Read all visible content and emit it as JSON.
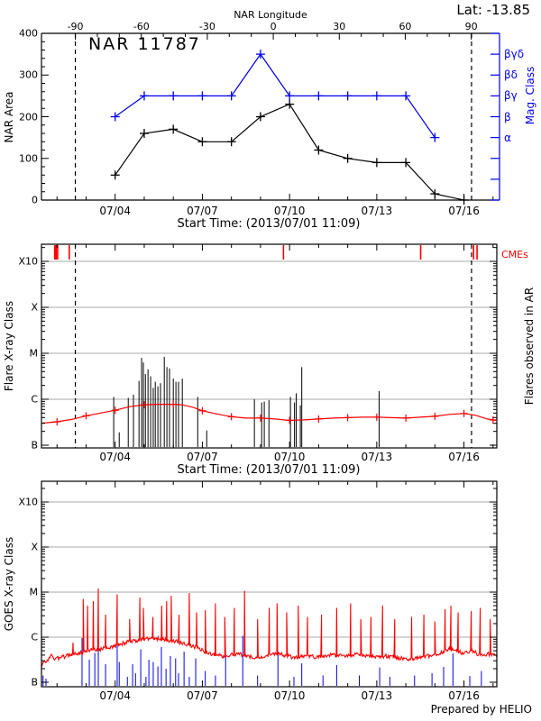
{
  "palette": {
    "red": "#ff0000",
    "blue": "#0000ee",
    "black": "#000000",
    "grid": "#a8a8a8"
  },
  "time": {
    "start_day": 1.465,
    "end_day": 17.13,
    "tick_labels": [
      "07/04",
      "07/07",
      "07/10",
      "07/13",
      "07/16"
    ],
    "tick_days": [
      4,
      7,
      10,
      13,
      16
    ]
  },
  "chart_data": [
    {
      "id": "nar-area-panel",
      "type": "line",
      "title": "NAR 11787",
      "lat_annotation": "Lat: -13.85",
      "xlabel": "Start Time: (2013/07/01 11:09)",
      "ylabel": "NAR Area",
      "ylim": [
        0,
        400
      ],
      "y_tick_labels": [
        "0",
        "100",
        "200",
        "300",
        "400"
      ],
      "y_tick_values": [
        0,
        100,
        200,
        300,
        400
      ],
      "top_axis": {
        "label": "NAR Longitude",
        "tick_labels": [
          "-90",
          "-60",
          "-30",
          "0",
          "30",
          "60",
          "90"
        ],
        "tick_lons": [
          -90,
          -60,
          -30,
          0,
          30,
          60,
          90
        ],
        "day_of_lon0": 9.44,
        "days_per_30deg": 2.27
      },
      "meridian_days": [
        2.63,
        16.26
      ],
      "series": [
        {
          "name": "area",
          "color": "#000000",
          "dates": [
            "07/04",
            "07/05",
            "07/06",
            "07/07",
            "07/08",
            "07/09",
            "07/10",
            "07/11",
            "07/12",
            "07/13",
            "07/14",
            "07/15",
            "07/16"
          ],
          "days": [
            4,
            5,
            6,
            7,
            8,
            9,
            10,
            11,
            12,
            13,
            14,
            15,
            16
          ],
          "values": [
            60,
            160,
            170,
            140,
            140,
            200,
            230,
            120,
            100,
            90,
            90,
            15,
            0
          ]
        },
        {
          "name": "mag_class",
          "color": "#0000ee",
          "dates": [
            "07/04",
            "07/05",
            "07/06",
            "07/07",
            "07/08",
            "07/09",
            "07/10",
            "07/11",
            "07/12",
            "07/13",
            "07/14",
            "07/15"
          ],
          "days": [
            4,
            5,
            6,
            7,
            8,
            9,
            10,
            11,
            12,
            13,
            14,
            15
          ],
          "values": [
            200,
            250,
            250,
            250,
            250,
            350,
            250,
            250,
            250,
            250,
            250,
            150
          ],
          "classes": [
            "β",
            "βγ",
            "βγ",
            "βγ",
            "βγ",
            "βγδ",
            "βγ",
            "βγ",
            "βγ",
            "βγ",
            "βγ",
            "α"
          ]
        }
      ],
      "right_axis": {
        "label": "Mag. Class",
        "class_labels": [
          "βγδ",
          "βδ",
          "βγ",
          "β",
          "α"
        ],
        "class_levels": [
          350,
          300,
          250,
          200,
          150
        ]
      }
    },
    {
      "id": "flare-panel",
      "type": "line+events",
      "ylabel": "Flare X-ray Class",
      "right_label": "Flares observed in AR",
      "cme_label": "CMEs",
      "xlabel": "Start Time: (2013/07/01 11:09)",
      "y_tick_labels": [
        "B",
        "C",
        "M",
        "X",
        "X10"
      ],
      "y_tick_log10": [
        -7,
        -6,
        -5,
        -4,
        -3
      ],
      "meridian_days": [
        2.63,
        16.26
      ],
      "cme_days": [
        1.92,
        1.97,
        2.02,
        2.42,
        9.79,
        14.51,
        16.33,
        16.45
      ],
      "flares_day_log10": [
        [
          3.95,
          -5.95
        ],
        [
          4.14,
          -6.72
        ],
        [
          4.45,
          -5.97
        ],
        [
          4.63,
          -5.9
        ],
        [
          4.82,
          -5.6
        ],
        [
          4.91,
          -5.1
        ],
        [
          4.97,
          -5.2
        ],
        [
          5.04,
          -5.45
        ],
        [
          5.13,
          -5.35
        ],
        [
          5.22,
          -5.5
        ],
        [
          5.31,
          -5.75
        ],
        [
          5.38,
          -5.62
        ],
        [
          5.47,
          -5.72
        ],
        [
          5.56,
          -5.65
        ],
        [
          5.69,
          -5.08
        ],
        [
          5.78,
          -5.3
        ],
        [
          5.87,
          -5.33
        ],
        [
          6.0,
          -5.55
        ],
        [
          6.09,
          -5.62
        ],
        [
          6.18,
          -5.62
        ],
        [
          6.31,
          -5.55
        ],
        [
          6.84,
          -5.95
        ],
        [
          7.15,
          -6.68
        ],
        [
          8.79,
          -6.0
        ],
        [
          9.04,
          -6.07
        ],
        [
          9.13,
          -6.05
        ],
        [
          9.29,
          -6.02
        ],
        [
          10.03,
          -5.95
        ],
        [
          10.17,
          -6.07
        ],
        [
          10.23,
          -5.87
        ],
        [
          10.37,
          -6.13
        ],
        [
          10.42,
          -5.3
        ],
        [
          13.08,
          -5.82
        ]
      ],
      "background_curve_day_log10": [
        [
          1.5,
          -6.52
        ],
        [
          2,
          -6.49
        ],
        [
          2.5,
          -6.44
        ],
        [
          3,
          -6.36
        ],
        [
          3.5,
          -6.3
        ],
        [
          4,
          -6.24
        ],
        [
          4.5,
          -6.16
        ],
        [
          5,
          -6.12
        ],
        [
          5.5,
          -6.11
        ],
        [
          6,
          -6.11
        ],
        [
          6.3,
          -6.12
        ],
        [
          6.7,
          -6.18
        ],
        [
          7,
          -6.25
        ],
        [
          7.5,
          -6.32
        ],
        [
          8,
          -6.38
        ],
        [
          8.5,
          -6.41
        ],
        [
          9,
          -6.41
        ],
        [
          9.5,
          -6.43
        ],
        [
          10,
          -6.46
        ],
        [
          10.5,
          -6.45
        ],
        [
          11,
          -6.43
        ],
        [
          11.5,
          -6.41
        ],
        [
          12,
          -6.4
        ],
        [
          12.5,
          -6.39
        ],
        [
          13,
          -6.39
        ],
        [
          13.5,
          -6.4
        ],
        [
          14,
          -6.41
        ],
        [
          14.5,
          -6.39
        ],
        [
          15,
          -6.37
        ],
        [
          15.5,
          -6.33
        ],
        [
          16,
          -6.31
        ],
        [
          16.4,
          -6.35
        ],
        [
          16.8,
          -6.43
        ],
        [
          17.1,
          -6.46
        ]
      ],
      "background_marker_days": [
        2,
        3,
        4,
        5,
        6,
        7,
        8,
        9,
        10,
        11,
        12,
        13,
        14,
        15,
        16,
        17
      ]
    },
    {
      "id": "goes-panel",
      "type": "line",
      "ylabel": "GOES X-ray Class",
      "credit": "Prepared by HELIO",
      "y_tick_labels": [
        "B",
        "C",
        "M",
        "X",
        "X10"
      ],
      "y_tick_log10": [
        -7,
        -6,
        -5,
        -4,
        -3
      ],
      "red_baseline_day_log10": [
        [
          1.47,
          -6.63
        ],
        [
          1.55,
          -6.55
        ],
        [
          1.65,
          -6.5
        ],
        [
          1.8,
          -6.42
        ],
        [
          1.9,
          -6.47
        ],
        [
          2.0,
          -6.48
        ],
        [
          2.1,
          -6.45
        ],
        [
          2.3,
          -6.42
        ],
        [
          2.5,
          -6.38
        ],
        [
          2.7,
          -6.36
        ],
        [
          2.9,
          -6.33
        ],
        [
          3.1,
          -6.3
        ],
        [
          3.3,
          -6.28
        ],
        [
          3.5,
          -6.26
        ],
        [
          3.7,
          -6.23
        ],
        [
          3.9,
          -6.21
        ],
        [
          4.1,
          -6.18
        ],
        [
          4.3,
          -6.13
        ],
        [
          4.5,
          -6.1
        ],
        [
          4.7,
          -6.08
        ],
        [
          4.9,
          -6.05
        ],
        [
          5.1,
          -6.03
        ],
        [
          5.3,
          -6.02
        ],
        [
          5.5,
          -6.04
        ],
        [
          5.7,
          -6.06
        ],
        [
          5.9,
          -6.08
        ],
        [
          6.1,
          -6.1
        ],
        [
          6.3,
          -6.12
        ],
        [
          6.5,
          -6.16
        ],
        [
          6.7,
          -6.2
        ],
        [
          6.9,
          -6.26
        ],
        [
          7.1,
          -6.32
        ],
        [
          7.3,
          -6.37
        ],
        [
          7.5,
          -6.4
        ],
        [
          7.7,
          -6.42
        ],
        [
          7.9,
          -6.41
        ],
        [
          8.1,
          -6.39
        ],
        [
          8.3,
          -6.38
        ],
        [
          8.5,
          -6.41
        ],
        [
          8.7,
          -6.43
        ],
        [
          8.9,
          -6.44
        ],
        [
          9.1,
          -6.42
        ],
        [
          9.3,
          -6.39
        ],
        [
          9.5,
          -6.36
        ],
        [
          9.7,
          -6.38
        ],
        [
          9.9,
          -6.42
        ],
        [
          10.1,
          -6.44
        ],
        [
          10.3,
          -6.45
        ],
        [
          10.5,
          -6.42
        ],
        [
          10.7,
          -6.41
        ],
        [
          10.9,
          -6.44
        ],
        [
          11.1,
          -6.44
        ],
        [
          11.3,
          -6.42
        ],
        [
          11.5,
          -6.39
        ],
        [
          11.7,
          -6.4
        ],
        [
          11.9,
          -6.42
        ],
        [
          12.1,
          -6.4
        ],
        [
          12.3,
          -6.38
        ],
        [
          12.5,
          -6.41
        ],
        [
          12.7,
          -6.43
        ],
        [
          12.9,
          -6.44
        ],
        [
          13.1,
          -6.44
        ],
        [
          13.3,
          -6.42
        ],
        [
          13.5,
          -6.44
        ],
        [
          13.7,
          -6.46
        ],
        [
          13.9,
          -6.48
        ],
        [
          14.1,
          -6.49
        ],
        [
          14.3,
          -6.47
        ],
        [
          14.5,
          -6.45
        ],
        [
          14.7,
          -6.43
        ],
        [
          14.9,
          -6.41
        ],
        [
          15.1,
          -6.38
        ],
        [
          15.3,
          -6.32
        ],
        [
          15.45,
          -6.26
        ],
        [
          15.6,
          -6.28
        ],
        [
          15.75,
          -6.3
        ],
        [
          15.9,
          -6.34
        ],
        [
          16.1,
          -6.33
        ],
        [
          16.3,
          -6.31
        ],
        [
          16.5,
          -6.38
        ],
        [
          16.7,
          -6.38
        ],
        [
          16.9,
          -6.37
        ],
        [
          17.13,
          -6.42
        ]
      ],
      "red_spikes_day_log10": [
        [
          2.55,
          -6.12
        ],
        [
          2.9,
          -5.15
        ],
        [
          3.05,
          -5.3
        ],
        [
          3.25,
          -5.2
        ],
        [
          3.42,
          -4.92
        ],
        [
          3.67,
          -5.5
        ],
        [
          4.07,
          -5.05
        ],
        [
          4.5,
          -5.6
        ],
        [
          4.85,
          -5.12
        ],
        [
          4.97,
          -5.35
        ],
        [
          5.3,
          -5.55
        ],
        [
          5.6,
          -5.3
        ],
        [
          5.77,
          -5.2
        ],
        [
          5.93,
          -5.08
        ],
        [
          6.2,
          -5.5
        ],
        [
          6.55,
          -5.02
        ],
        [
          6.8,
          -5.45
        ],
        [
          7.1,
          -5.4
        ],
        [
          7.45,
          -5.25
        ],
        [
          7.77,
          -5.55
        ],
        [
          8.1,
          -5.35
        ],
        [
          8.45,
          -4.97
        ],
        [
          8.9,
          -5.6
        ],
        [
          9.3,
          -5.35
        ],
        [
          9.57,
          -5.25
        ],
        [
          9.9,
          -5.45
        ],
        [
          10.3,
          -5.3
        ],
        [
          10.62,
          -5.55
        ],
        [
          11.1,
          -5.5
        ],
        [
          11.62,
          -5.35
        ],
        [
          12.1,
          -5.25
        ],
        [
          12.45,
          -5.6
        ],
        [
          12.8,
          -5.55
        ],
        [
          13.2,
          -5.3
        ],
        [
          13.62,
          -5.6
        ],
        [
          14.2,
          -5.55
        ],
        [
          14.62,
          -5.5
        ],
        [
          15.0,
          -5.65
        ],
        [
          15.35,
          -5.38
        ],
        [
          15.55,
          -5.3
        ],
        [
          15.8,
          -5.45
        ],
        [
          16.25,
          -5.42
        ],
        [
          16.56,
          -5.35
        ],
        [
          16.9,
          -5.6
        ]
      ],
      "blue_spikes_day_log10": [
        [
          1.52,
          -6.85
        ],
        [
          1.62,
          -6.92
        ],
        [
          2.86,
          -6.02
        ],
        [
          3.11,
          -6.5
        ],
        [
          3.3,
          -6.35
        ],
        [
          3.42,
          -5.9
        ],
        [
          3.67,
          -6.6
        ],
        [
          4.07,
          -6.12
        ],
        [
          4.14,
          -6.55
        ],
        [
          4.42,
          -6.88
        ],
        [
          4.6,
          -6.6
        ],
        [
          4.7,
          -6.8
        ],
        [
          4.88,
          -6.27
        ],
        [
          5.06,
          -6.88
        ],
        [
          5.16,
          -6.5
        ],
        [
          5.31,
          -6.55
        ],
        [
          5.47,
          -6.65
        ],
        [
          5.59,
          -6.22
        ],
        [
          5.75,
          -6.7
        ],
        [
          5.9,
          -6.42
        ],
        [
          6.08,
          -6.47
        ],
        [
          6.18,
          -6.8
        ],
        [
          6.37,
          -6.32
        ],
        [
          6.55,
          -6.88
        ],
        [
          6.77,
          -6.47
        ],
        [
          7.1,
          -6.75
        ],
        [
          7.45,
          -6.85
        ],
        [
          7.8,
          -6.42
        ],
        [
          8.39,
          -5.97
        ],
        [
          8.9,
          -6.85
        ],
        [
          9.6,
          -6.32
        ],
        [
          10.15,
          -6.88
        ],
        [
          10.42,
          -6.58
        ],
        [
          11.15,
          -6.85
        ],
        [
          11.62,
          -6.62
        ],
        [
          12.4,
          -6.85
        ],
        [
          13.1,
          -6.67
        ],
        [
          13.45,
          -6.88
        ],
        [
          14.3,
          -6.85
        ],
        [
          14.9,
          -6.8
        ],
        [
          15.3,
          -6.66
        ],
        [
          15.62,
          -6.36
        ],
        [
          16.2,
          -6.86
        ],
        [
          16.6,
          -6.75
        ]
      ]
    }
  ]
}
